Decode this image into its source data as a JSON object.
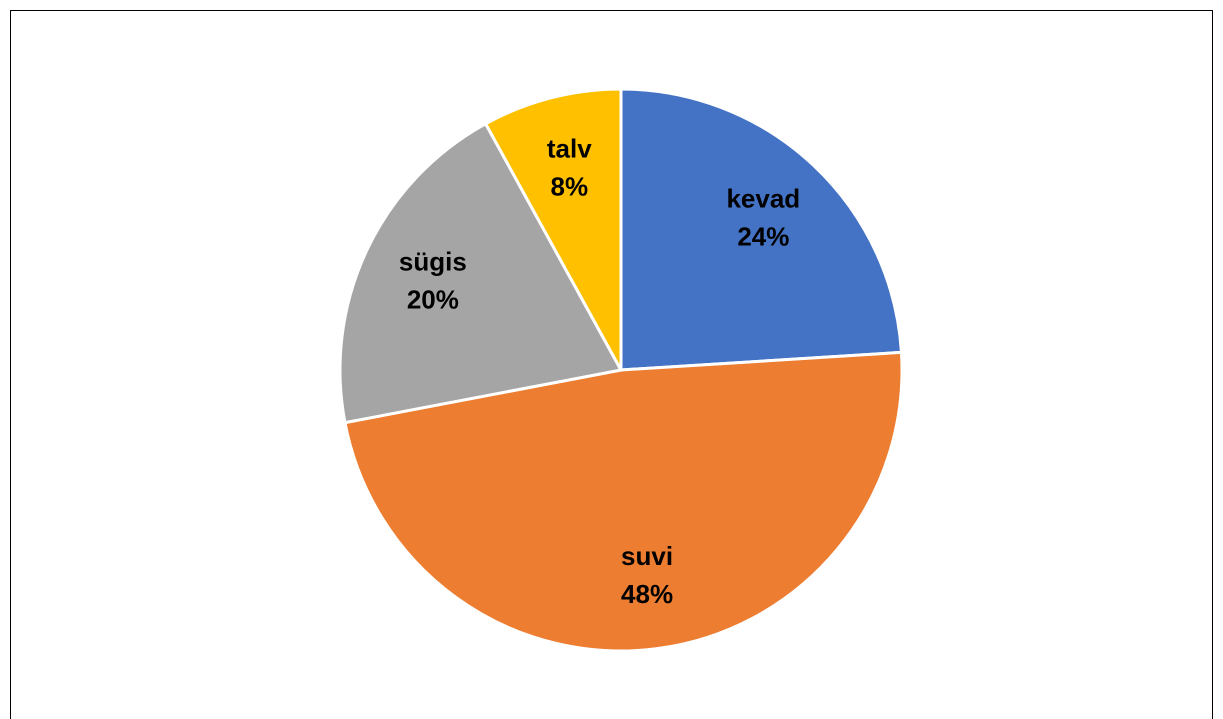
{
  "chart_data": {
    "type": "pie",
    "categories": [
      "kevad",
      "suvi",
      "sügis",
      "talv"
    ],
    "values": [
      24,
      48,
      20,
      8
    ],
    "value_labels": [
      "24%",
      "48%",
      "20%",
      "8%"
    ],
    "colors": [
      "#4472c4",
      "#ed7d31",
      "#a5a5a5",
      "#ffc000"
    ]
  }
}
